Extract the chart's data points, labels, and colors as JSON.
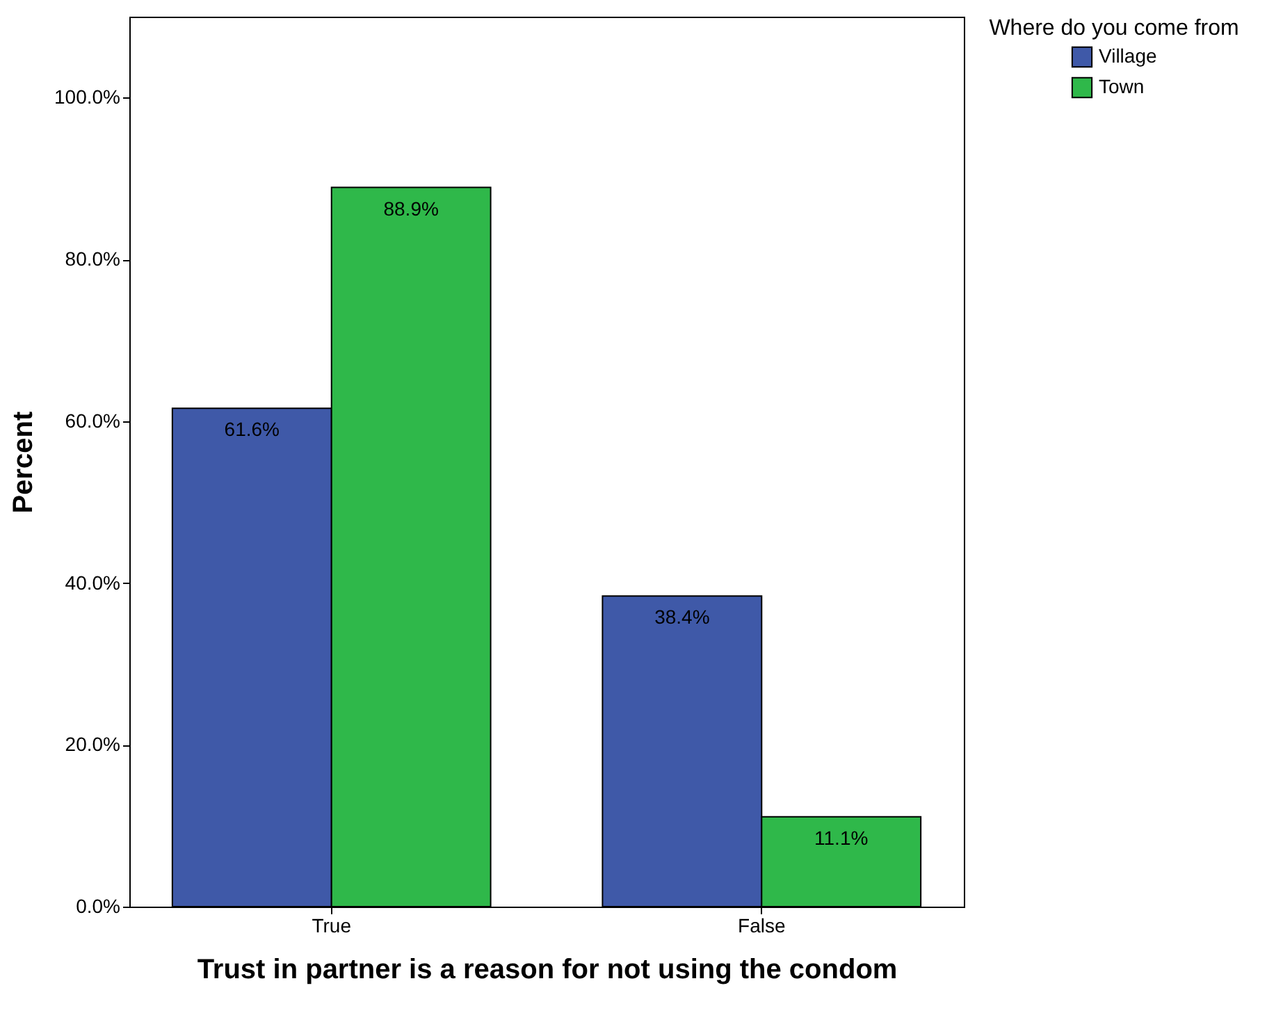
{
  "chart_data": {
    "type": "bar",
    "xlabel": "Trust in partner is a reason for not using the condom",
    "ylabel": "Percent",
    "legend_title": "Where do you come from",
    "categories": [
      "True",
      "False"
    ],
    "series": [
      {
        "name": "Village",
        "color": "#3f59a8",
        "values": [
          61.6,
          38.4
        ],
        "value_labels": [
          "61.6%",
          "38.4%"
        ]
      },
      {
        "name": "Town",
        "color": "#2fb84a",
        "values": [
          88.9,
          11.1
        ],
        "value_labels": [
          "88.9%",
          "11.1%"
        ]
      }
    ],
    "ylim": [
      0,
      110
    ],
    "yticks": [
      {
        "value": 0,
        "label": "0.0%"
      },
      {
        "value": 20,
        "label": "20.0%"
      },
      {
        "value": 40,
        "label": "40.0%"
      },
      {
        "value": 60,
        "label": "60.0%"
      },
      {
        "value": 80,
        "label": "80.0%"
      },
      {
        "value": 100,
        "label": "100.0%"
      }
    ],
    "grid": false,
    "legend": "top right"
  }
}
